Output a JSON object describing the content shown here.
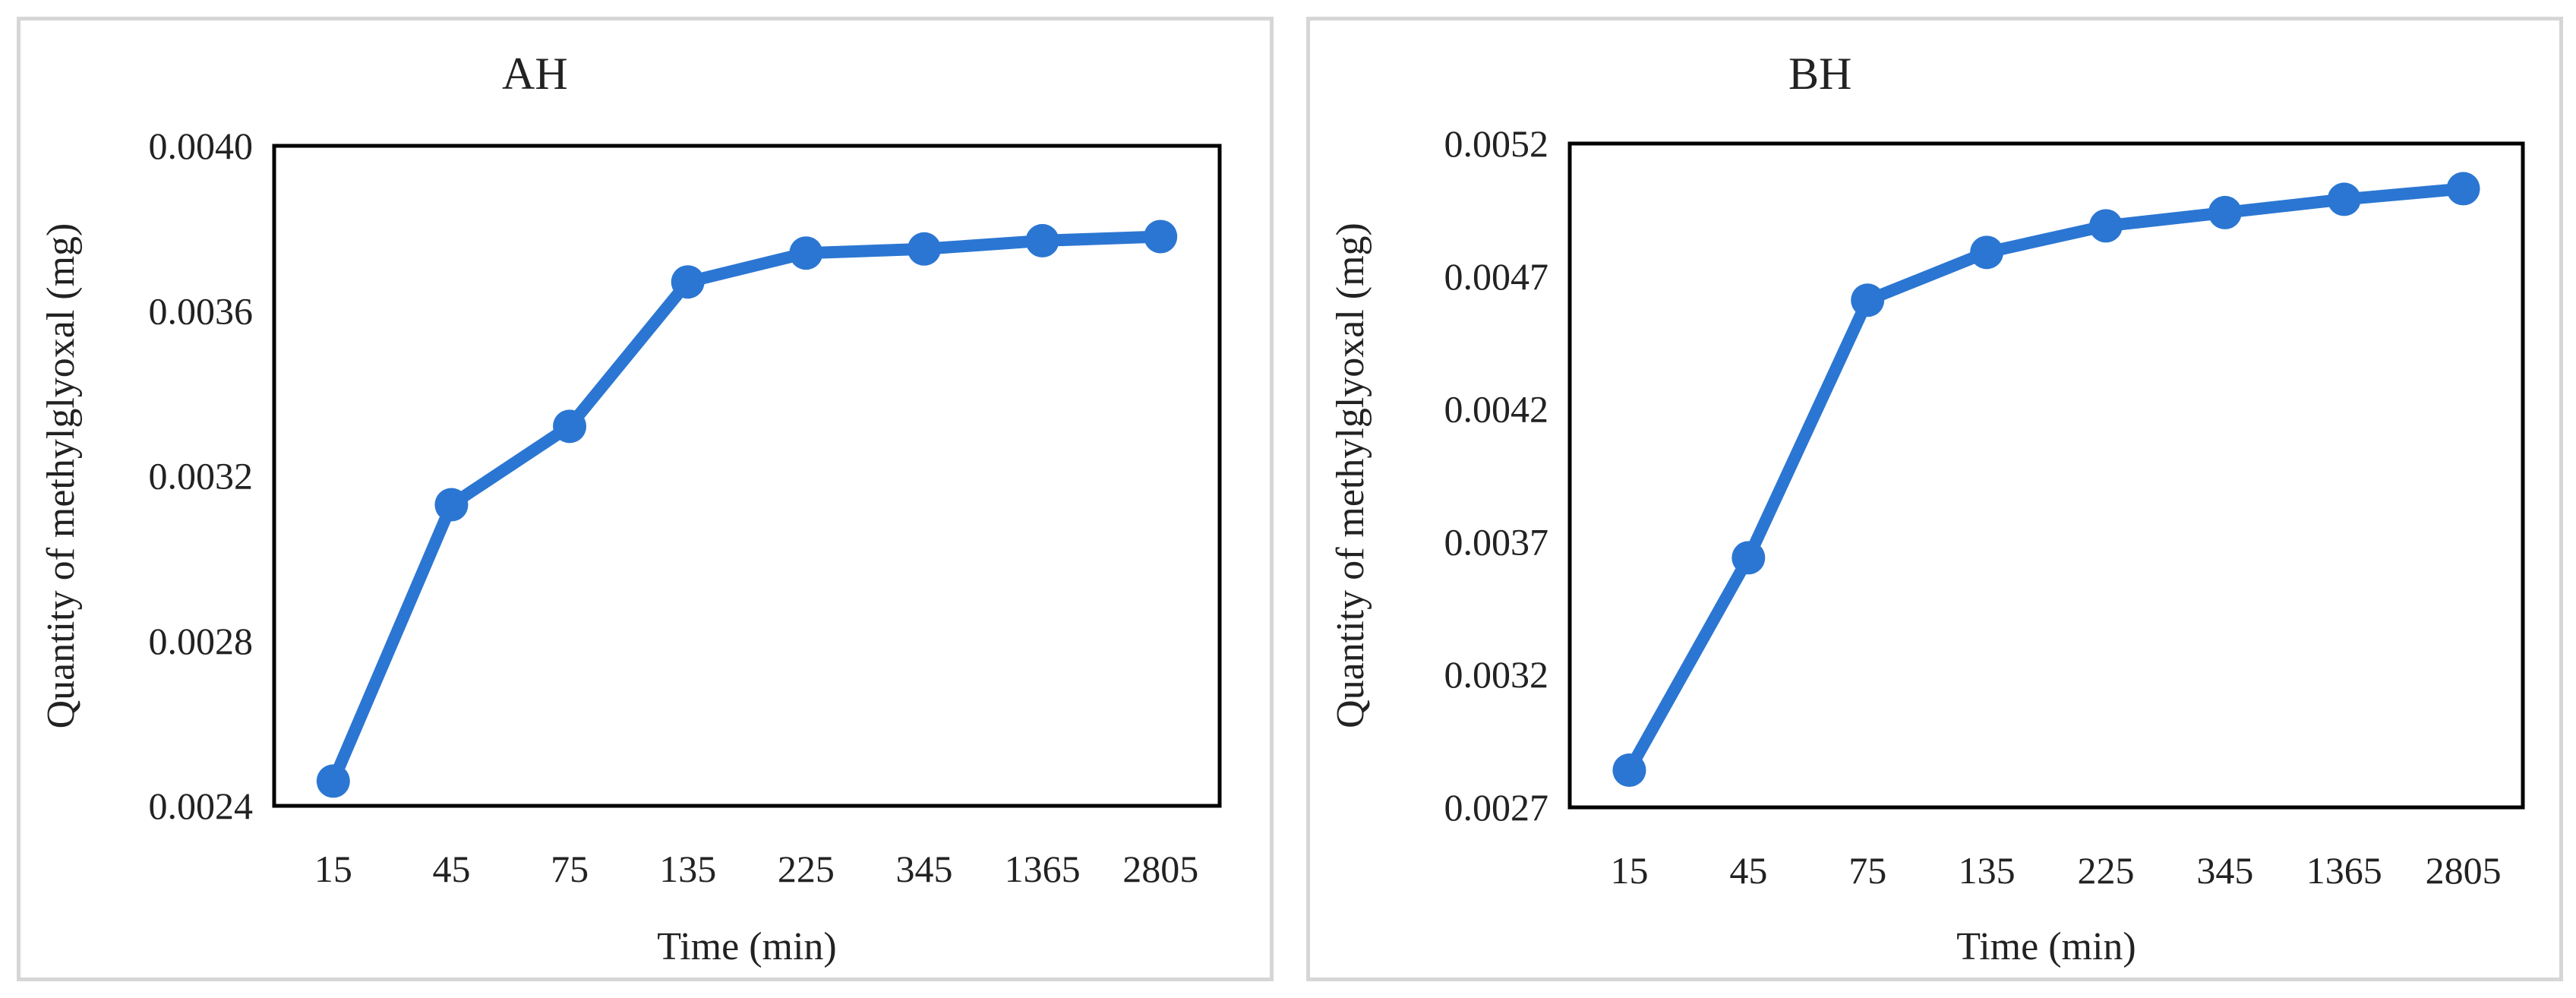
{
  "colors": {
    "series": "#2B76D2",
    "frame": "#000000",
    "panel_border": "#d6d6d6",
    "text": "#222222"
  },
  "chart_data": [
    {
      "type": "line",
      "title": "AH",
      "xlabel": "Time (min)",
      "ylabel": "Quantity of methylglyoxal (mg)",
      "categories": [
        "15",
        "45",
        "75",
        "135",
        "225",
        "345",
        "1365",
        "2805"
      ],
      "ylim": [
        0.0024,
        0.004
      ],
      "yticks": [
        "0.0024",
        "0.0028",
        "0.0032",
        "0.0036",
        "0.0040"
      ],
      "grid": false,
      "series": [
        {
          "values": [
            0.00246,
            0.00313,
            0.00332,
            0.00367,
            0.00374,
            0.00375,
            0.00377,
            0.00378
          ]
        }
      ]
    },
    {
      "type": "line",
      "title": "BH",
      "xlabel": "Time (min)",
      "ylabel": "Quantity of methylglyoxal (mg)",
      "categories": [
        "15",
        "45",
        "75",
        "135",
        "225",
        "345",
        "1365",
        "2805"
      ],
      "ylim": [
        0.0027,
        0.0052
      ],
      "yticks": [
        "0.0027",
        "0.0032",
        "0.0037",
        "0.0042",
        "0.0047",
        "0.0052"
      ],
      "grid": false,
      "series": [
        {
          "values": [
            0.00284,
            0.00364,
            0.00461,
            0.00479,
            0.00489,
            0.00494,
            0.00499,
            0.00503
          ]
        }
      ]
    }
  ]
}
